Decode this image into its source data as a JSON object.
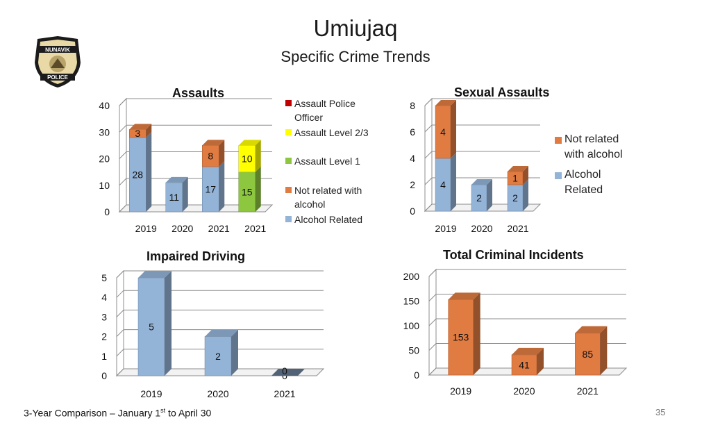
{
  "slide": {
    "title": "Umiujaq",
    "subtitle": "Specific Crime Trends",
    "footer_main": "3-Year Comparison – January 1",
    "footer_sup": "st",
    "footer_tail": " to April 30",
    "page_number": "35"
  },
  "badge": {
    "top_text": "NUNAVIK",
    "bottom_text": "POLICE"
  },
  "colors": {
    "alcohol_related": "#93B3D7",
    "not_related": "#E07B42",
    "level1": "#8DC63F",
    "level23": "#FFFF00",
    "police_officer": "#C00000"
  },
  "chart_data": [
    {
      "id": "assaults",
      "type": "bar",
      "stacked": true,
      "title": "Assaults",
      "categories": [
        "2019",
        "2020",
        "2021",
        "2021"
      ],
      "ylim": [
        0,
        40
      ],
      "yticks": [
        "0",
        "10",
        "20",
        "30",
        "40"
      ],
      "grid": true,
      "legend_position": "right",
      "series": [
        {
          "name": "Assault Police Officer",
          "color": "#C00000",
          "values": [
            0,
            0,
            0,
            0
          ]
        },
        {
          "name": "Assault Level 2/3",
          "color": "#FFFF00",
          "values": [
            0,
            0,
            0,
            10
          ]
        },
        {
          "name": "Assault Level 1",
          "color": "#8DC63F",
          "values": [
            0,
            0,
            0,
            15
          ]
        },
        {
          "name": "Not related with alcohol",
          "color": "#E07B42",
          "values": [
            3,
            0,
            8,
            0
          ]
        },
        {
          "name": "Alcohol Related",
          "color": "#93B3D7",
          "values": [
            28,
            11,
            17,
            0
          ]
        }
      ]
    },
    {
      "id": "sexual",
      "type": "bar",
      "stacked": true,
      "title": "Sexual Assaults",
      "categories": [
        "2019",
        "2020",
        "2021"
      ],
      "ylim": [
        0,
        8
      ],
      "yticks": [
        "0",
        "2",
        "4",
        "6",
        "8"
      ],
      "grid": true,
      "legend_position": "right",
      "series": [
        {
          "name": "Not related with alcohol",
          "color": "#E07B42",
          "values": [
            4,
            0,
            1
          ]
        },
        {
          "name": "Alcohol Related",
          "color": "#93B3D7",
          "values": [
            4,
            2,
            2
          ]
        }
      ]
    },
    {
      "id": "impaired",
      "type": "bar",
      "title": "Impaired Driving",
      "categories": [
        "2019",
        "2020",
        "2021"
      ],
      "ylim": [
        0,
        5
      ],
      "yticks": [
        "0",
        "1",
        "2",
        "3",
        "4",
        "5"
      ],
      "grid": true,
      "color": "#93B3D7",
      "values": [
        5,
        2,
        0
      ]
    },
    {
      "id": "total",
      "type": "bar",
      "title": "Total Criminal Incidents",
      "categories": [
        "2019",
        "2020",
        "2021"
      ],
      "ylim": [
        0,
        200
      ],
      "yticks": [
        "0",
        "50",
        "100",
        "150",
        "200"
      ],
      "grid": true,
      "color": "#E07B42",
      "values": [
        153,
        41,
        85
      ]
    }
  ],
  "legends": {
    "assaults": [
      {
        "text": "Assault Police Officer",
        "color": "#C00000"
      },
      {
        "text": "Assault Level 2/3",
        "color": "#FFFF00"
      },
      {
        "text": "Assault Level 1",
        "color": "#8DC63F"
      },
      {
        "text": "Not related with alcohol",
        "color": "#E07B42"
      },
      {
        "text": "Alcohol Related",
        "color": "#93B3D7"
      }
    ],
    "sexual": [
      {
        "text": "Not related with alcohol",
        "color": "#E07B42"
      },
      {
        "text": "Alcohol Related",
        "color": "#93B3D7"
      }
    ]
  }
}
